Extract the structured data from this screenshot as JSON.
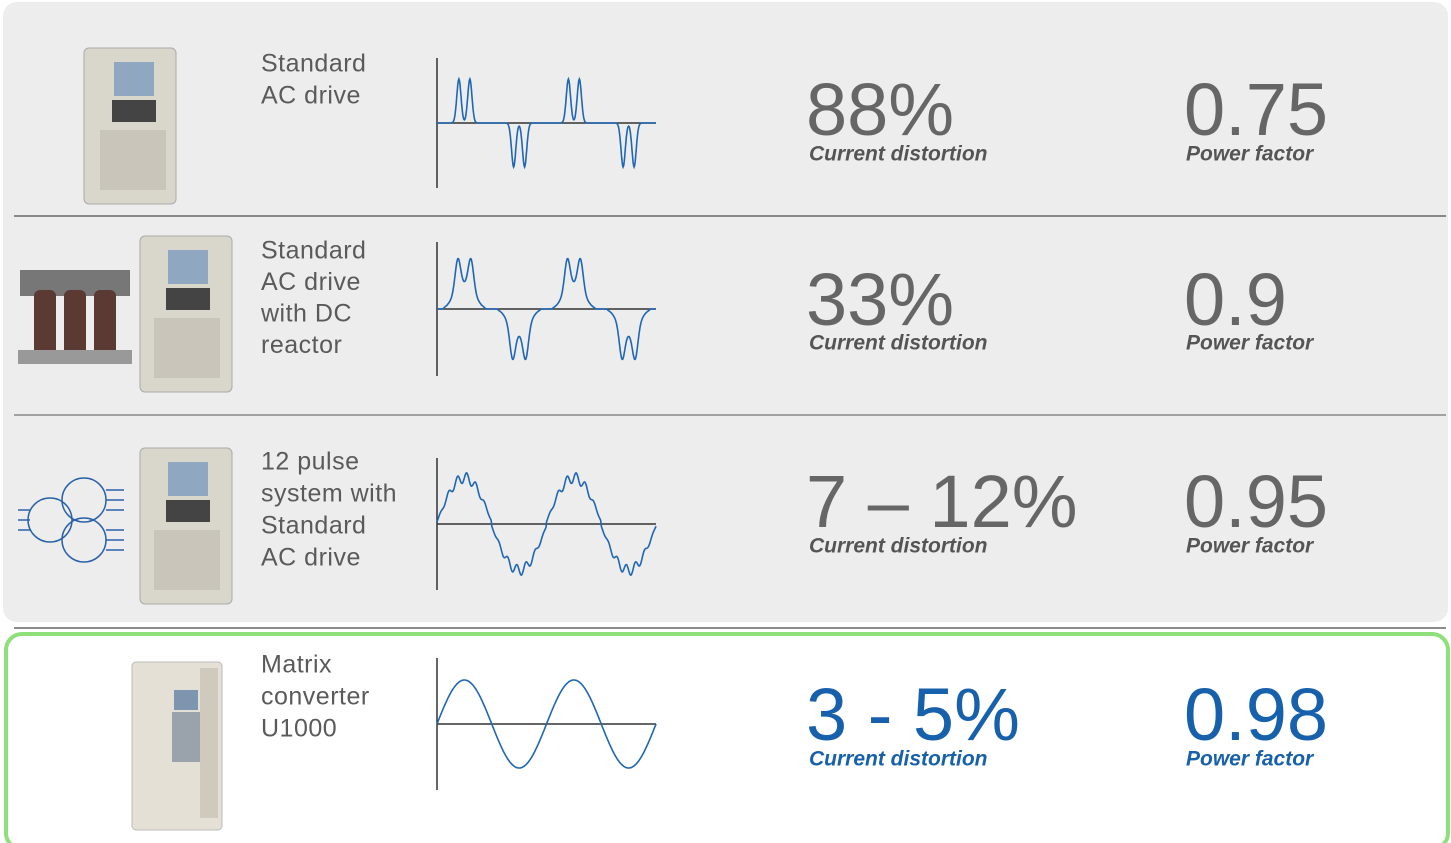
{
  "rows": [
    {
      "label_lines": [
        "Standard",
        "AC drive"
      ],
      "distortion": "88%",
      "distortion_label": "Current distortion",
      "power_factor": "0.75",
      "power_factor_label": "Power factor"
    },
    {
      "label_lines": [
        "Standard",
        "AC drive",
        "with DC",
        "reactor"
      ],
      "distortion": "33%",
      "distortion_label": "Current distortion",
      "power_factor": "0.9",
      "power_factor_label": "Power factor"
    },
    {
      "label_lines": [
        "12 pulse",
        "system with",
        "Standard",
        "AC drive"
      ],
      "distortion": "7 – 12%",
      "distortion_label": "Current distortion",
      "power_factor": "0.95",
      "power_factor_label": "Power factor"
    },
    {
      "label_lines": [
        "Matrix",
        "converter",
        "U1000"
      ],
      "distortion": "3 - 5%",
      "distortion_label": "Current distortion",
      "power_factor": "0.98",
      "power_factor_label": "Power factor"
    }
  ]
}
